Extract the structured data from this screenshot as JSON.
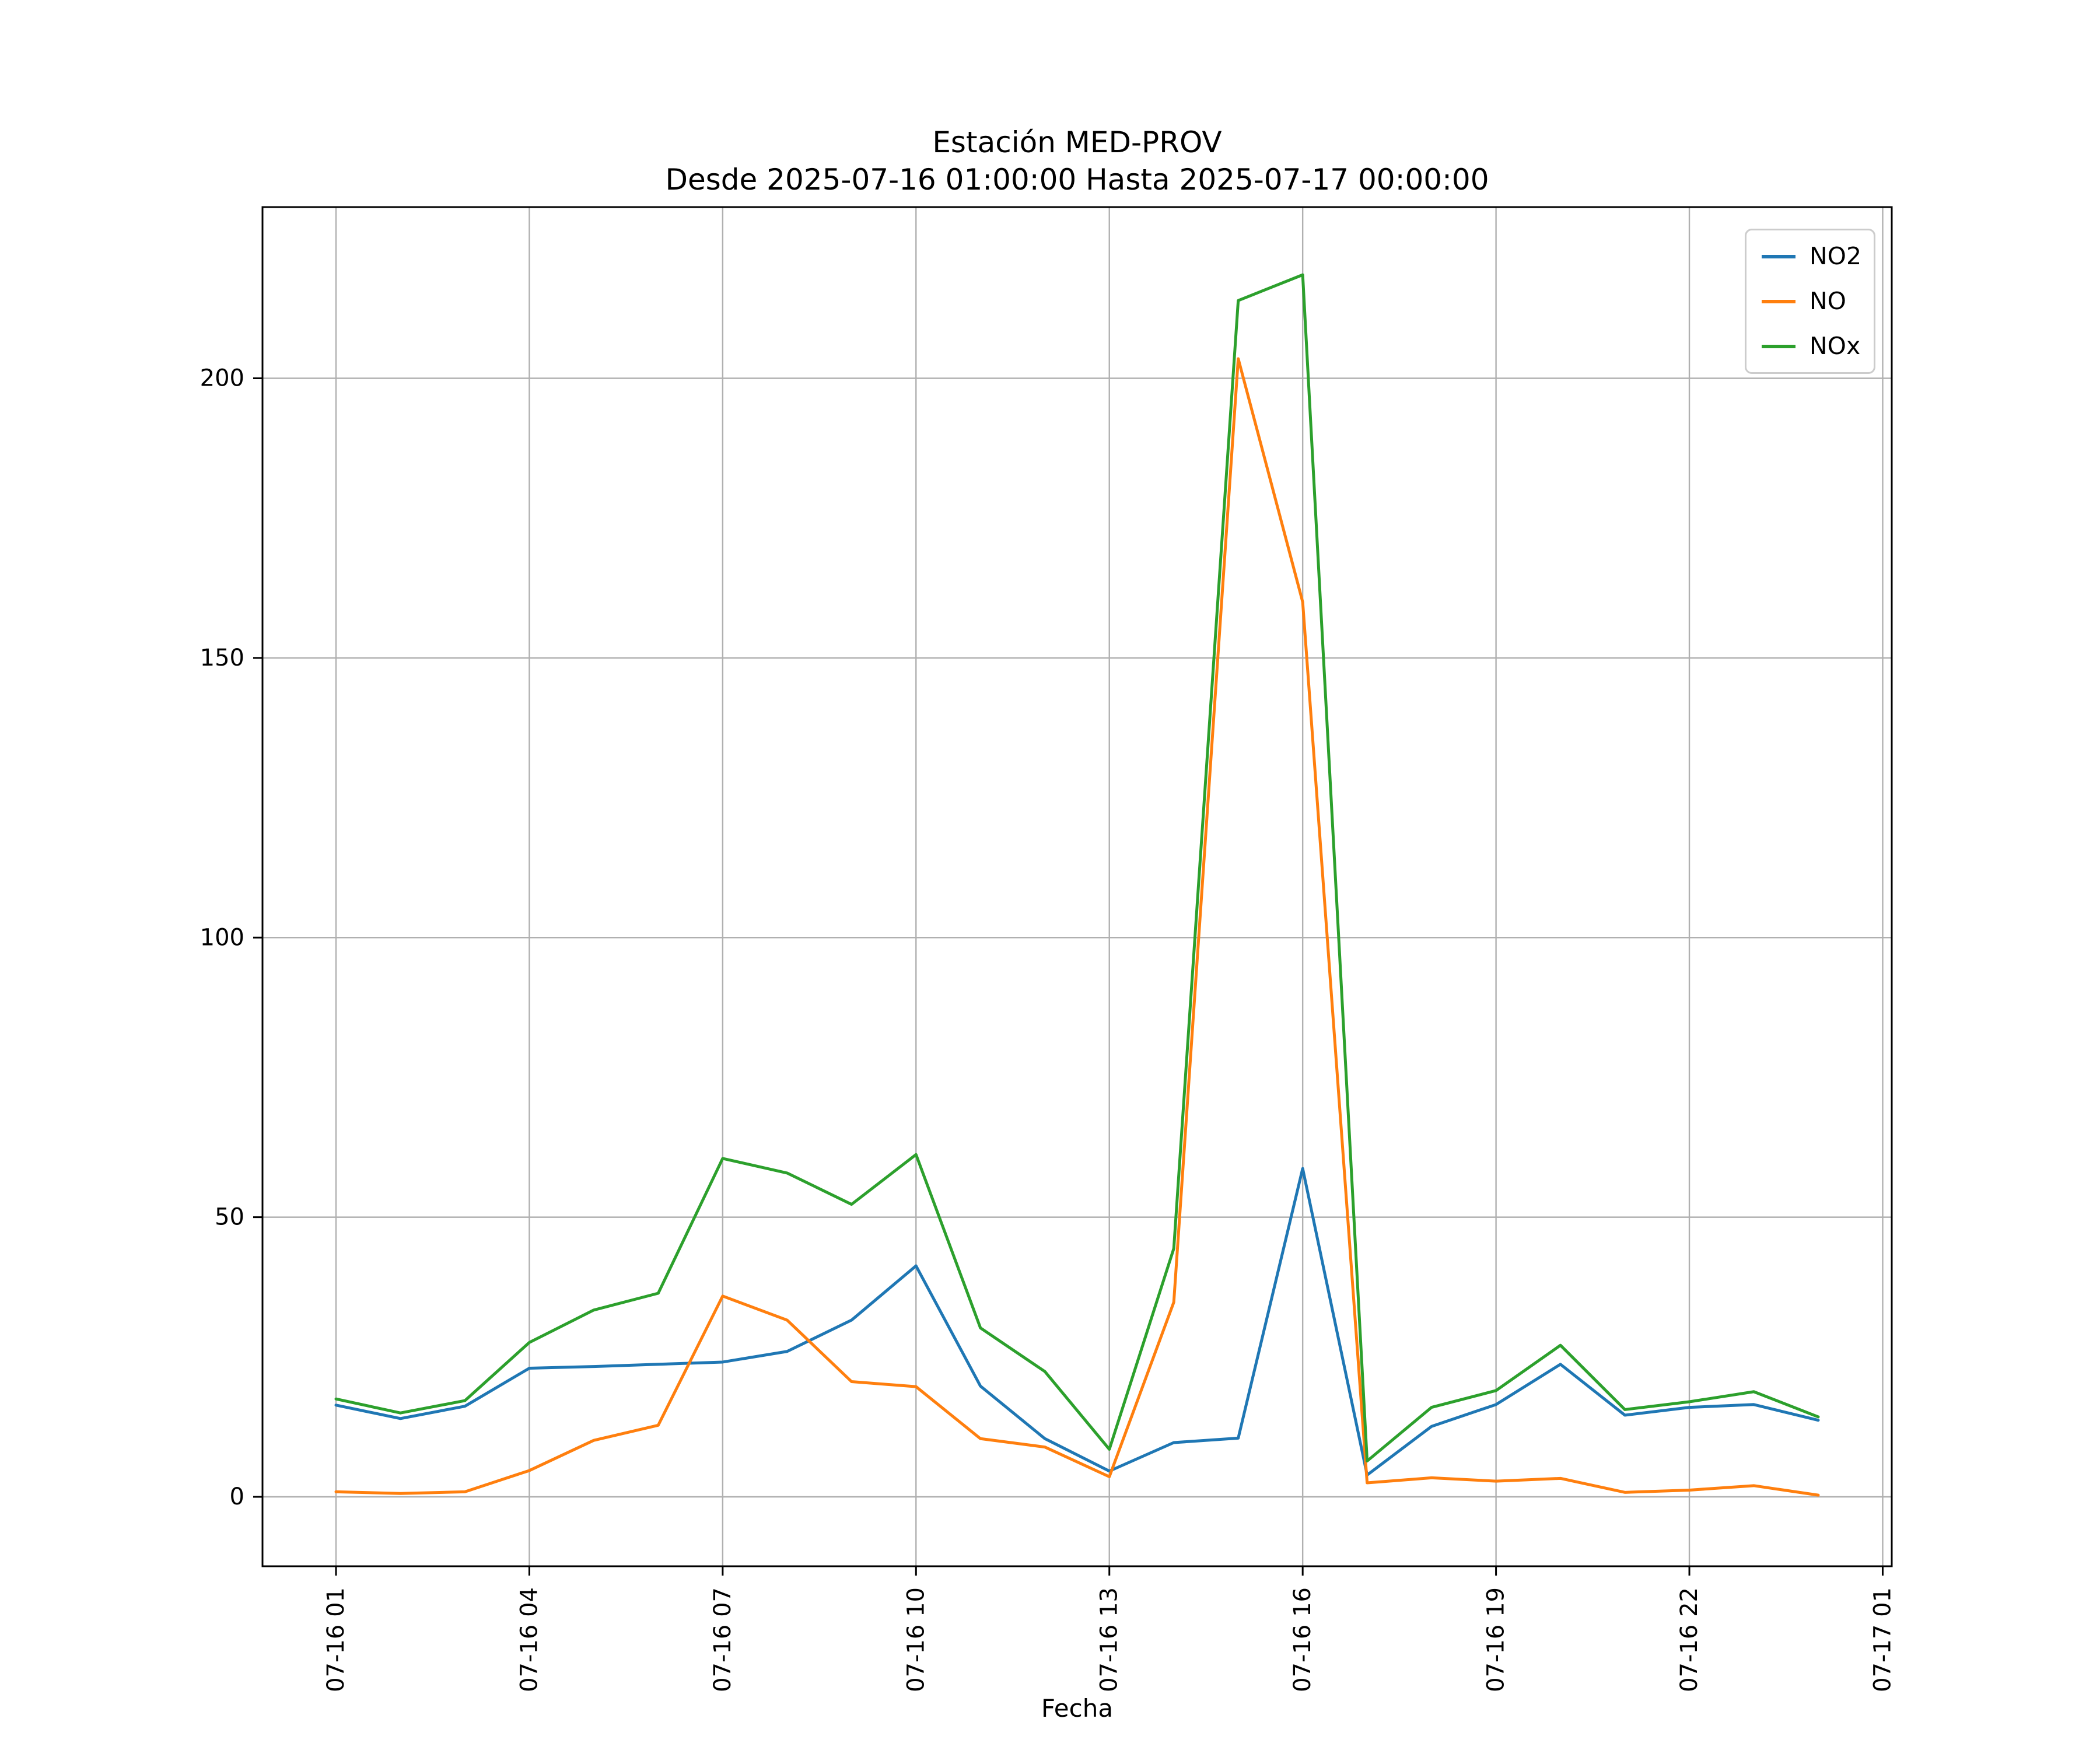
{
  "chart_data": {
    "type": "line",
    "title": "Estación MED-PROV",
    "subtitle": "Desde 2025-07-16 01:00:00 Hasta 2025-07-17 00:00:00",
    "xlabel": "Fecha",
    "ylabel": "",
    "grid": true,
    "grid_color": "#b0b0b0",
    "background_color": "#ffffff",
    "legend_position": "upper right",
    "x_hours": [
      "01:00",
      "02:00",
      "03:00",
      "04:00",
      "05:00",
      "06:00",
      "07:00",
      "08:00",
      "09:00",
      "10:00",
      "11:00",
      "12:00",
      "13:00",
      "14:00",
      "15:00",
      "16:00",
      "17:00",
      "18:00",
      "19:00",
      "20:00",
      "21:00",
      "22:00",
      "23:00",
      "00:00"
    ],
    "x_tick_labels": [
      "07-16 01",
      "07-16 04",
      "07-16 07",
      "07-16 10",
      "07-16 13",
      "07-16 16",
      "07-16 19",
      "07-16 22",
      "07-17 01"
    ],
    "y_ticks": [
      0,
      50,
      100,
      150,
      200
    ],
    "ylim": [
      -12.4,
      230.6
    ],
    "series": [
      {
        "name": "NO2",
        "color": "#1f77b4",
        "values": [
          16.4,
          14.0,
          16.2,
          23.0,
          23.3,
          23.7,
          24.1,
          26.0,
          31.6,
          41.3,
          19.8,
          10.4,
          4.6,
          9.7,
          10.5,
          58.7,
          3.9,
          12.6,
          16.5,
          23.7,
          14.6,
          16.0,
          16.5,
          13.7
        ]
      },
      {
        "name": "NO",
        "color": "#ff7f0e",
        "values": [
          0.9,
          0.6,
          0.9,
          4.7,
          10.1,
          12.8,
          35.9,
          31.6,
          20.6,
          19.7,
          10.4,
          8.9,
          3.6,
          34.8,
          203.5,
          160.0,
          2.5,
          3.4,
          2.8,
          3.3,
          0.8,
          1.2,
          2.0,
          0.3
        ]
      },
      {
        "name": "NOx",
        "color": "#2ca02c",
        "values": [
          17.5,
          15.0,
          17.2,
          27.6,
          33.4,
          36.4,
          60.5,
          57.9,
          52.3,
          61.2,
          30.2,
          22.4,
          8.5,
          44.4,
          213.9,
          218.5,
          6.4,
          16.0,
          19.0,
          27.1,
          15.6,
          17.0,
          18.8,
          14.3
        ]
      }
    ]
  }
}
